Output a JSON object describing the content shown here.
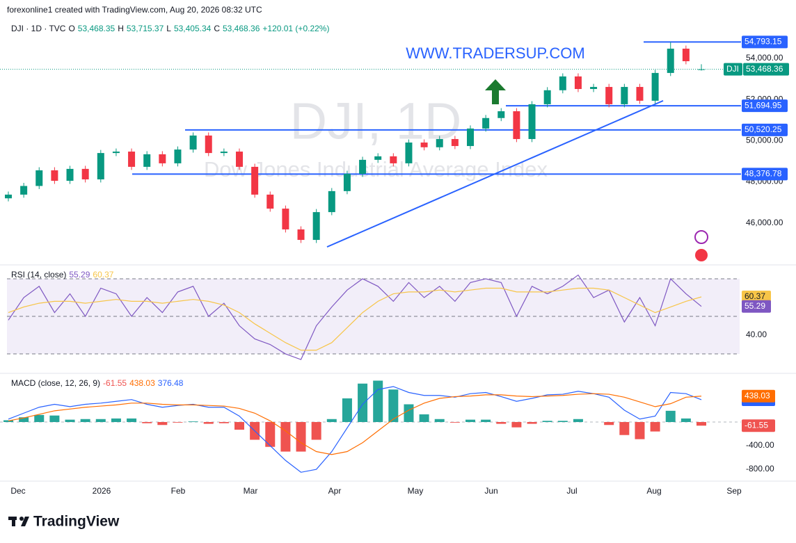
{
  "header": {
    "credit": "forexonline1 created with TradingView.com, Aug 20, 2026 08:32 UTC"
  },
  "watermark": {
    "symbol": "DJI, 1D",
    "description": "Dow Jones Industrial Average Index",
    "site": "WWW.TRADERSUP.COM"
  },
  "footer": {
    "brand": "TradingView"
  },
  "time_axis": [
    "Dec",
    "2026",
    "Feb",
    "Mar",
    "Apr",
    "May",
    "Jun",
    "Jul",
    "Aug",
    "Sep"
  ],
  "chart_data": [
    {
      "type": "candlestick",
      "title": "DJI · 1D · TVC",
      "legend": {
        "open": {
          "key": "O",
          "value": "53,468.35"
        },
        "high": {
          "key": "H",
          "value": "53,715.37"
        },
        "low": {
          "key": "L",
          "value": "53,405.34"
        },
        "close": {
          "key": "C",
          "value": "53,468.36"
        },
        "change": "+120.01 (+0.22%)"
      },
      "ohlc": [
        [
          47200,
          47530,
          47050,
          47380
        ],
        [
          47380,
          47950,
          47230,
          47800
        ],
        [
          47800,
          48710,
          47650,
          48560
        ],
        [
          48560,
          48710,
          47900,
          48050
        ],
        [
          48050,
          48780,
          47900,
          48630
        ],
        [
          48630,
          48780,
          47970,
          48120
        ],
        [
          48120,
          49550,
          47970,
          49400
        ],
        [
          49400,
          49620,
          49250,
          49470
        ],
        [
          49470,
          49620,
          48580,
          48730
        ],
        [
          48730,
          49490,
          48580,
          49340
        ],
        [
          49340,
          49490,
          48750,
          48900
        ],
        [
          48900,
          49720,
          48750,
          49570
        ],
        [
          49570,
          50400,
          49420,
          50250
        ],
        [
          50250,
          50400,
          49250,
          49400
        ],
        [
          49400,
          49620,
          49250,
          49470
        ],
        [
          49470,
          49620,
          48580,
          48730
        ],
        [
          48730,
          48880,
          47230,
          47380
        ],
        [
          47380,
          47530,
          46550,
          46700
        ],
        [
          46700,
          46850,
          45540,
          45690
        ],
        [
          45690,
          45840,
          45030,
          45180
        ],
        [
          45180,
          46680,
          45030,
          46530
        ],
        [
          46530,
          47700,
          46380,
          47550
        ],
        [
          47550,
          48540,
          47400,
          48390
        ],
        [
          48390,
          49220,
          48240,
          49070
        ],
        [
          49070,
          49390,
          48920,
          49240
        ],
        [
          49240,
          49390,
          48750,
          48900
        ],
        [
          48900,
          50060,
          48750,
          49910
        ],
        [
          49910,
          50060,
          49530,
          49680
        ],
        [
          49680,
          50230,
          49530,
          50080
        ],
        [
          50080,
          50230,
          49590,
          49740
        ],
        [
          49740,
          50740,
          49590,
          50590
        ],
        [
          50590,
          51250,
          50440,
          51100
        ],
        [
          51100,
          51580,
          50950,
          51430
        ],
        [
          51430,
          51580,
          49930,
          50080
        ],
        [
          50080,
          51920,
          49930,
          51770
        ],
        [
          51770,
          52600,
          51620,
          52450
        ],
        [
          52450,
          53270,
          52300,
          53120
        ],
        [
          53120,
          53270,
          52360,
          52510
        ],
        [
          52510,
          52760,
          52360,
          52610
        ],
        [
          52610,
          52760,
          51620,
          51770
        ],
        [
          51770,
          52760,
          51620,
          52610
        ],
        [
          52610,
          52760,
          51790,
          51940
        ],
        [
          51940,
          53440,
          51790,
          53290
        ],
        [
          53290,
          54793.15,
          53140,
          54470
        ],
        [
          54470,
          54620,
          53710,
          53860
        ],
        [
          53468.35,
          53715.37,
          53405.34,
          53468.36
        ]
      ],
      "up_color": "#089981",
      "down_color": "#f23645",
      "ylim": [
        44000,
        55820
      ],
      "yticks": [
        {
          "value": 46000,
          "label": "46,000.00"
        },
        {
          "value": 48000,
          "label": "48,000.00"
        },
        {
          "value": 50000,
          "label": "50,000.00"
        },
        {
          "value": 52000,
          "label": "52,000.00"
        },
        {
          "value": 54000,
          "label": "54,000.00"
        }
      ],
      "levels": [
        {
          "value": 54793.15,
          "label": "54,793.15"
        },
        {
          "value": 51694.95,
          "label": "51,694.95"
        },
        {
          "value": 50520.25,
          "label": "50,520.25"
        },
        {
          "value": 48376.78,
          "label": "48,376.78"
        }
      ],
      "level_color": "#2962ff",
      "trendline": [
        44840,
        51940
      ],
      "last_price": {
        "symbol": "DJI",
        "price": {
          "value": 53468.36,
          "label": "53,468.36"
        }
      }
    },
    {
      "type": "line",
      "title": "RSI (14, close)",
      "ylim": [
        20.4,
        74.8
      ],
      "yticks": [
        {
          "value": 40,
          "label": "40.00"
        }
      ],
      "bands": [
        70,
        50,
        30
      ],
      "series": [
        {
          "color": "#7e57c2",
          "values": [
            48,
            60,
            66,
            52,
            62,
            50,
            65,
            62,
            50,
            60,
            52,
            63,
            66,
            50,
            57,
            45,
            38,
            35,
            30,
            27,
            45,
            55,
            64,
            70,
            66,
            58,
            68,
            60,
            66,
            58,
            68,
            70,
            68,
            50,
            66,
            62,
            66,
            72,
            60,
            64,
            47,
            60,
            45,
            70,
            62,
            55.29
          ]
        },
        {
          "color": "#f7c548",
          "values": [
            52,
            55,
            57,
            58,
            58,
            57,
            58,
            59,
            58,
            58,
            57,
            58,
            59,
            58,
            56,
            52,
            46,
            41,
            36,
            32,
            32,
            36,
            44,
            52,
            58,
            62,
            63,
            63,
            64,
            63,
            64,
            65,
            65,
            63,
            63,
            63,
            64,
            65,
            65,
            64,
            60,
            56,
            52,
            55,
            58,
            60.37
          ]
        }
      ]
    },
    {
      "type": "macd",
      "title": "MACD (close, 12, 26, 9)",
      "ylim": [
        -976,
        788
      ],
      "yticks": [
        {
          "value": -400,
          "label": "-400.00"
        },
        {
          "value": -800,
          "label": "-800.00"
        }
      ],
      "histogram": {
        "up_color": "#26a69a",
        "down_color": "#ef5350",
        "values": [
          30,
          80,
          120,
          110,
          40,
          50,
          50,
          60,
          60,
          -20,
          -50,
          -10,
          10,
          -30,
          -20,
          -130,
          -300,
          -420,
          -500,
          -500,
          -300,
          50,
          400,
          650,
          700,
          550,
          300,
          130,
          50,
          -10,
          40,
          40,
          -30,
          -90,
          -30,
          20,
          20,
          50,
          0,
          -50,
          -220,
          -290,
          -160,
          190,
          60,
          -61.55
        ]
      },
      "series": [
        {
          "color": "#2962ff",
          "values": [
            50,
            150,
            250,
            300,
            260,
            300,
            320,
            350,
            380,
            300,
            250,
            280,
            300,
            250,
            250,
            100,
            -150,
            -400,
            -650,
            -850,
            -800,
            -500,
            -100,
            300,
            550,
            600,
            500,
            450,
            450,
            420,
            480,
            500,
            430,
            350,
            400,
            460,
            470,
            520,
            480,
            420,
            200,
            50,
            100,
            500,
            480,
            376.48
          ]
        },
        {
          "color": "#ff6d00",
          "values": [
            20,
            70,
            130,
            190,
            220,
            250,
            270,
            290,
            320,
            320,
            300,
            290,
            290,
            280,
            270,
            230,
            150,
            20,
            -150,
            -350,
            -500,
            -550,
            -500,
            -350,
            -150,
            50,
            200,
            320,
            400,
            430,
            440,
            460,
            460,
            440,
            430,
            440,
            450,
            470,
            480,
            470,
            420,
            340,
            260,
            310,
            420,
            438.03
          ]
        }
      ]
    }
  ]
}
